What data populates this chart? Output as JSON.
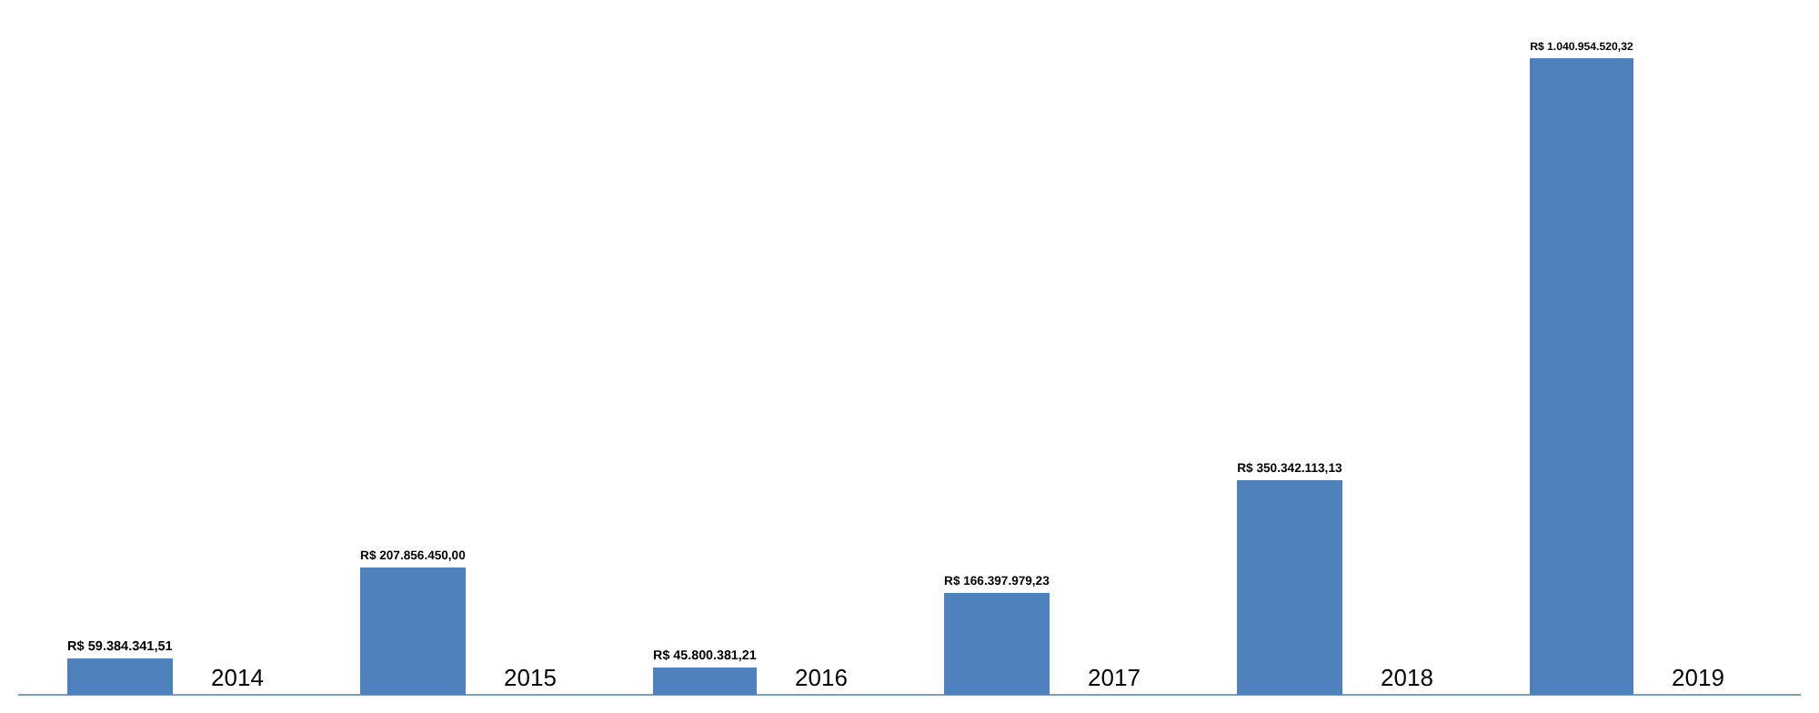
{
  "chart_data": {
    "type": "bar",
    "categories": [
      "2014",
      "2015",
      "2016",
      "2017",
      "2018",
      "2019"
    ],
    "values": [
      59384341.51,
      207856450.0,
      45800381.21,
      166397979.23,
      350342113.13,
      1040954520.32
    ],
    "value_labels": [
      "R$ 59.384.341,51",
      "R$ 207.856.450,00",
      "R$ 45.800.381,21",
      "R$ 166.397.979,23",
      "R$ 350.342.113,13",
      "R$ 1.040.954.520,32"
    ],
    "color": "#4f81bd",
    "legend": false
  }
}
